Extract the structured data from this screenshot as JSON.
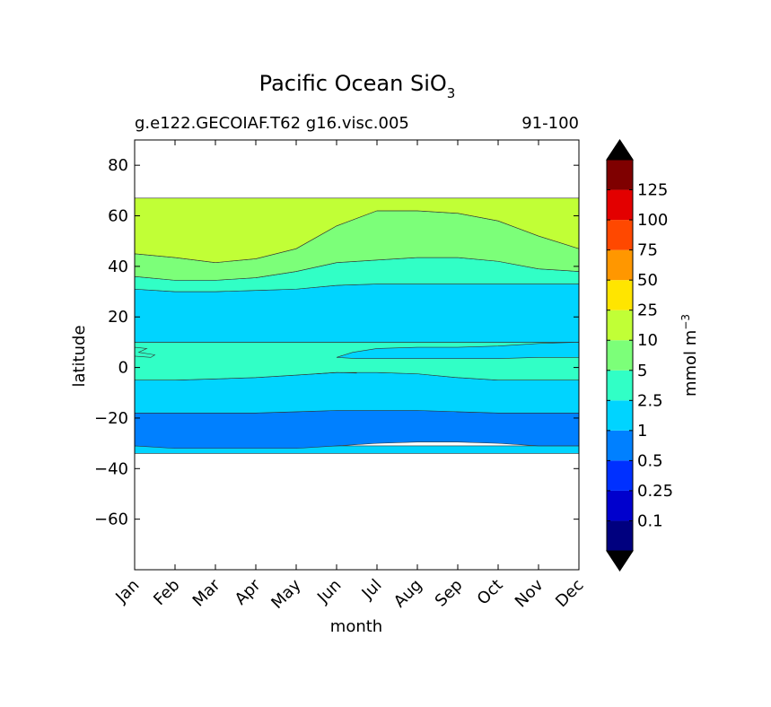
{
  "chart_data": {
    "type": "contourf",
    "title": {
      "main": "Pacific Ocean SiO",
      "subscript": "3"
    },
    "subtitle_left": "g.e122.GECOIAF.T62 g16.visc.005",
    "subtitle_right": "91-100",
    "xlabel": "month",
    "ylabel": "latitude",
    "x_categories": [
      "Jan",
      "Feb",
      "Mar",
      "Apr",
      "May",
      "Jun",
      "Jul",
      "Aug",
      "Sep",
      "Oct",
      "Nov",
      "Dec"
    ],
    "xlim": [
      0,
      11
    ],
    "ylim": [
      -80,
      90
    ],
    "y_ticks": [
      80,
      60,
      40,
      20,
      0,
      -20,
      -40,
      -60
    ],
    "y_tick_labels": [
      "80",
      "60",
      "40",
      "20",
      "0",
      "−20",
      "−40",
      "−60"
    ],
    "data_lat_range": [
      -34,
      67
    ],
    "colorbar": {
      "label": "mmol m",
      "label_superscript": "−3",
      "levels": [
        0.1,
        0.25,
        0.5,
        1,
        2.5,
        5,
        10,
        25,
        50,
        75,
        100,
        125
      ],
      "tick_labels": [
        "0.1",
        "0.25",
        "0.5",
        "1",
        "2.5",
        "5",
        "10",
        "25",
        "50",
        "75",
        "100",
        "125"
      ],
      "bin_colors": [
        "#00007f",
        "#0000cd",
        "#0030ff",
        "#0080ff",
        "#00d4ff",
        "#31ffc6",
        "#7cff79",
        "#c1ff36",
        "#ffe500",
        "#ff9700",
        "#ff4800",
        "#e30000",
        "#7f0000"
      ],
      "extend_min_color": "#000000",
      "extend_max_color": "#000000"
    },
    "contour_bands": [
      {
        "name": "band-1-2.5",
        "level": "1-2.5",
        "color": "#00d4ff",
        "top": [
          [
            0,
            -31
          ],
          [
            1,
            -31
          ],
          [
            2,
            -31
          ],
          [
            3,
            -31
          ],
          [
            4,
            -31
          ],
          [
            5,
            -31
          ],
          [
            6,
            -31
          ],
          [
            7,
            -31
          ],
          [
            8,
            -31
          ],
          [
            9,
            -31
          ],
          [
            10,
            -31
          ],
          [
            11,
            -31
          ]
        ],
        "bottom": [
          [
            0,
            -34
          ],
          [
            1,
            -34
          ],
          [
            2,
            -34
          ],
          [
            3,
            -34
          ],
          [
            4,
            -34
          ],
          [
            5,
            -34
          ],
          [
            6,
            -34
          ],
          [
            7,
            -34
          ],
          [
            8,
            -34
          ],
          [
            9,
            -34
          ],
          [
            10,
            -34
          ],
          [
            11,
            -34
          ]
        ]
      },
      {
        "name": "band-0.5-1",
        "level": "0.5-1",
        "color": "#0080ff",
        "top": [
          [
            0,
            -18
          ],
          [
            1,
            -18
          ],
          [
            2,
            -18
          ],
          [
            3,
            -18
          ],
          [
            4,
            -17.5
          ],
          [
            5,
            -17
          ],
          [
            6,
            -17
          ],
          [
            7,
            -17
          ],
          [
            8,
            -17.5
          ],
          [
            9,
            -18
          ],
          [
            10,
            -18
          ],
          [
            11,
            -18
          ]
        ],
        "bottom": [
          [
            0,
            -31
          ],
          [
            1,
            -32
          ],
          [
            2,
            -32
          ],
          [
            3,
            -32
          ],
          [
            4,
            -32
          ],
          [
            5,
            -31
          ],
          [
            6,
            -30
          ],
          [
            7,
            -29.5
          ],
          [
            8,
            -29.5
          ],
          [
            9,
            -30
          ],
          [
            10,
            -31
          ],
          [
            11,
            -31
          ]
        ]
      },
      {
        "name": "band-1-2.5-south",
        "level": "1-2.5",
        "color": "#00d4ff",
        "top": [
          [
            0,
            -5
          ],
          [
            1,
            -5
          ],
          [
            2,
            -4.5
          ],
          [
            3,
            -4
          ],
          [
            4,
            -3
          ],
          [
            5,
            -2
          ],
          [
            6,
            -2
          ],
          [
            7,
            -2.5
          ],
          [
            8,
            -4
          ],
          [
            9,
            -5
          ],
          [
            10,
            -5
          ],
          [
            11,
            -5
          ]
        ],
        "bottom": [
          [
            0,
            -18
          ],
          [
            1,
            -18
          ],
          [
            2,
            -18
          ],
          [
            3,
            -18
          ],
          [
            4,
            -17.5
          ],
          [
            5,
            -17
          ],
          [
            6,
            -17
          ],
          [
            7,
            -17
          ],
          [
            8,
            -17.5
          ],
          [
            9,
            -18
          ],
          [
            10,
            -18
          ],
          [
            11,
            -18
          ]
        ]
      },
      {
        "name": "band-2.5-5-equator",
        "level": "2.5-5",
        "color": "#31ffc6",
        "top": [
          [
            0,
            10
          ],
          [
            1,
            10
          ],
          [
            2,
            10
          ],
          [
            3,
            10
          ],
          [
            4,
            10
          ],
          [
            5,
            10
          ],
          [
            6,
            10
          ],
          [
            7,
            10
          ],
          [
            8,
            10
          ],
          [
            9,
            10
          ],
          [
            10,
            10
          ],
          [
            11,
            10
          ]
        ],
        "bottom": [
          [
            0,
            -5
          ],
          [
            1,
            -5
          ],
          [
            2,
            -4.5
          ],
          [
            3,
            -4
          ],
          [
            4,
            -3
          ],
          [
            5,
            -2
          ],
          [
            6,
            -2
          ],
          [
            7,
            -2.5
          ],
          [
            8,
            -4
          ],
          [
            9,
            -5
          ],
          [
            10,
            -5
          ],
          [
            11,
            -5
          ]
        ]
      },
      {
        "name": "band-1-2.5-north",
        "level": "1-2.5",
        "color": "#00d4ff",
        "top": [
          [
            0,
            31
          ],
          [
            1,
            30
          ],
          [
            2,
            30
          ],
          [
            3,
            30.5
          ],
          [
            4,
            31
          ],
          [
            5,
            32.5
          ],
          [
            6,
            33
          ],
          [
            7,
            33
          ],
          [
            8,
            33
          ],
          [
            9,
            33
          ],
          [
            10,
            33
          ],
          [
            11,
            33
          ]
        ],
        "bottom": [
          [
            0,
            10
          ],
          [
            1,
            10
          ],
          [
            2,
            10
          ],
          [
            3,
            10
          ],
          [
            4,
            10
          ],
          [
            5,
            10
          ],
          [
            6,
            10
          ],
          [
            7,
            10
          ],
          [
            8,
            10
          ],
          [
            9,
            10
          ],
          [
            10,
            10
          ],
          [
            11,
            10
          ]
        ]
      },
      {
        "name": "band-2.5-5-north",
        "level": "2.5-5",
        "color": "#31ffc6",
        "top": [
          [
            0,
            36
          ],
          [
            1,
            34.5
          ],
          [
            2,
            34.5
          ],
          [
            3,
            35.5
          ],
          [
            4,
            38
          ],
          [
            5,
            41.5
          ],
          [
            6,
            42.5
          ],
          [
            7,
            43.5
          ],
          [
            8,
            43.5
          ],
          [
            9,
            42
          ],
          [
            10,
            39
          ],
          [
            11,
            38
          ]
        ],
        "bottom": [
          [
            0,
            31
          ],
          [
            1,
            30
          ],
          [
            2,
            30
          ],
          [
            3,
            30.5
          ],
          [
            4,
            31
          ],
          [
            5,
            32.5
          ],
          [
            6,
            33
          ],
          [
            7,
            33
          ],
          [
            8,
            33
          ],
          [
            9,
            33
          ],
          [
            10,
            33
          ],
          [
            11,
            33
          ]
        ]
      },
      {
        "name": "band-5-10",
        "level": "5-10",
        "color": "#7cff79",
        "top": [
          [
            0,
            45
          ],
          [
            1,
            43.5
          ],
          [
            2,
            41.5
          ],
          [
            3,
            43
          ],
          [
            4,
            47
          ],
          [
            5,
            56
          ],
          [
            6,
            62
          ],
          [
            7,
            62
          ],
          [
            8,
            61
          ],
          [
            9,
            58
          ],
          [
            10,
            52
          ],
          [
            11,
            47
          ]
        ],
        "bottom": [
          [
            0,
            36
          ],
          [
            1,
            34.5
          ],
          [
            2,
            34.5
          ],
          [
            3,
            35.5
          ],
          [
            4,
            38
          ],
          [
            5,
            41.5
          ],
          [
            6,
            42.5
          ],
          [
            7,
            43.5
          ],
          [
            8,
            43.5
          ],
          [
            9,
            42
          ],
          [
            10,
            39
          ],
          [
            11,
            38
          ]
        ]
      },
      {
        "name": "band-10-25",
        "level": "10-25",
        "color": "#c1ff36",
        "top": [
          [
            0,
            67
          ],
          [
            1,
            67
          ],
          [
            2,
            67
          ],
          [
            3,
            67
          ],
          [
            4,
            67
          ],
          [
            5,
            67
          ],
          [
            6,
            67
          ],
          [
            7,
            67
          ],
          [
            8,
            67
          ],
          [
            9,
            67
          ],
          [
            10,
            67
          ],
          [
            11,
            67
          ]
        ],
        "bottom": [
          [
            0,
            45
          ],
          [
            1,
            43.5
          ],
          [
            2,
            41.5
          ],
          [
            3,
            43
          ],
          [
            4,
            47
          ],
          [
            5,
            56
          ],
          [
            6,
            62
          ],
          [
            7,
            62
          ],
          [
            8,
            61
          ],
          [
            9,
            58
          ],
          [
            10,
            52
          ],
          [
            11,
            47
          ]
        ]
      }
    ],
    "contour_patches": [
      {
        "name": "patch-1-2.5-jul-oct",
        "level": "1-2.5",
        "color": "#00d4ff",
        "points": [
          [
            5,
            4
          ],
          [
            5.4,
            6
          ],
          [
            6,
            7.5
          ],
          [
            7,
            8
          ],
          [
            8,
            8
          ],
          [
            9,
            8.5
          ],
          [
            10,
            9.5
          ],
          [
            11,
            10
          ],
          [
            11,
            4
          ],
          [
            10,
            4
          ],
          [
            9,
            3.5
          ],
          [
            8,
            3.5
          ],
          [
            7,
            3.5
          ],
          [
            6,
            3.5
          ],
          [
            5.5,
            3.5
          ]
        ]
      },
      {
        "name": "patch-2.5-5-jan-tongue",
        "level": "2.5-5",
        "color": "#31ffc6",
        "points": [
          [
            0,
            8
          ],
          [
            0.3,
            7.5
          ],
          [
            0.1,
            6
          ],
          [
            0.5,
            5
          ],
          [
            0.4,
            4
          ],
          [
            0,
            4.5
          ]
        ]
      }
    ],
    "contour_lines": [
      {
        "name": "contour-line-wave",
        "level": "5",
        "points": [
          [
            4.5,
            -2.5
          ],
          [
            5,
            -2
          ],
          [
            5.5,
            -2.2
          ]
        ]
      }
    ]
  }
}
